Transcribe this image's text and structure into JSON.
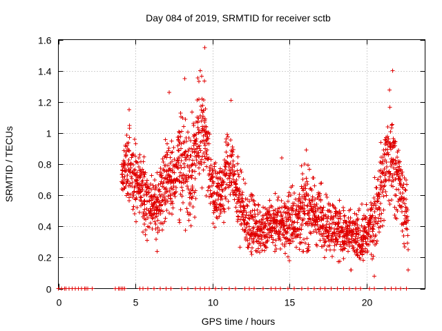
{
  "chart_data": {
    "type": "scatter",
    "title": "Day 084 of 2019, SRMTID for receiver sctb",
    "xlabel": "GPS time / hours",
    "ylabel": "SRMTID / TECUs",
    "xlim": [
      0,
      23.8
    ],
    "ylim": [
      0,
      1.6
    ],
    "grid": true,
    "marker": "+",
    "marker_color": "#e00000",
    "x_ticks": [
      {
        "value": 0,
        "label": "0"
      },
      {
        "value": 5,
        "label": "5"
      },
      {
        "value": 10,
        "label": "10"
      },
      {
        "value": 15,
        "label": "15"
      },
      {
        "value": 20,
        "label": "20"
      }
    ],
    "y_ticks": [
      {
        "value": 0,
        "label": "0"
      },
      {
        "value": 0.2,
        "label": "0.2"
      },
      {
        "value": 0.4,
        "label": "0.4"
      },
      {
        "value": 0.6,
        "label": "0.6"
      },
      {
        "value": 0.8,
        "label": "0.8"
      },
      {
        "value": 1.0,
        "label": "1"
      },
      {
        "value": 1.2,
        "label": "1.2"
      },
      {
        "value": 1.4,
        "label": "1.4"
      },
      {
        "value": 1.6,
        "label": "1.6"
      }
    ],
    "series": [
      {
        "name": "SRMTID",
        "description": "Approximate envelope of a dense scatter of individual + markers; columns give the data range at each time.",
        "profile": [
          {
            "t": 4.1,
            "lo": 0.45,
            "hi": 0.95
          },
          {
            "t": 4.5,
            "lo": 0.45,
            "hi": 1.18
          },
          {
            "t": 5.0,
            "lo": 0.38,
            "hi": 1.0
          },
          {
            "t": 5.5,
            "lo": 0.3,
            "hi": 0.92
          },
          {
            "t": 6.0,
            "lo": 0.28,
            "hi": 0.78
          },
          {
            "t": 6.5,
            "lo": 0.24,
            "hi": 0.82
          },
          {
            "t": 7.0,
            "lo": 0.4,
            "hi": 1.1
          },
          {
            "t": 7.5,
            "lo": 0.4,
            "hi": 1.0
          },
          {
            "t": 8.0,
            "lo": 0.35,
            "hi": 1.3
          },
          {
            "t": 8.5,
            "lo": 0.3,
            "hi": 1.2
          },
          {
            "t": 9.0,
            "lo": 0.4,
            "hi": 1.42
          },
          {
            "t": 9.4,
            "lo": 0.45,
            "hi": 1.55
          },
          {
            "t": 10.0,
            "lo": 0.35,
            "hi": 0.95
          },
          {
            "t": 10.5,
            "lo": 0.35,
            "hi": 0.85
          },
          {
            "t": 11.0,
            "lo": 0.4,
            "hi": 1.2
          },
          {
            "t": 11.5,
            "lo": 0.35,
            "hi": 0.95
          },
          {
            "t": 12.0,
            "lo": 0.15,
            "hi": 0.75
          },
          {
            "t": 13.0,
            "lo": 0.15,
            "hi": 0.6
          },
          {
            "t": 14.0,
            "lo": 0.15,
            "hi": 0.65
          },
          {
            "t": 15.0,
            "lo": 0.15,
            "hi": 0.7
          },
          {
            "t": 16.0,
            "lo": 0.15,
            "hi": 0.9
          },
          {
            "t": 17.0,
            "lo": 0.15,
            "hi": 0.75
          },
          {
            "t": 18.0,
            "lo": 0.12,
            "hi": 0.65
          },
          {
            "t": 19.0,
            "lo": 0.1,
            "hi": 0.55
          },
          {
            "t": 20.0,
            "lo": 0.08,
            "hi": 0.6
          },
          {
            "t": 20.5,
            "lo": 0.15,
            "hi": 0.75
          },
          {
            "t": 21.0,
            "lo": 0.25,
            "hi": 1.1
          },
          {
            "t": 21.5,
            "lo": 0.4,
            "hi": 1.38
          },
          {
            "t": 22.0,
            "lo": 0.4,
            "hi": 1.1
          },
          {
            "t": 22.5,
            "lo": 0.15,
            "hi": 0.8
          },
          {
            "t": 22.7,
            "lo": 0.12,
            "hi": 0.7
          }
        ],
        "sample_points": [
          {
            "x": 4.3,
            "y": 0.72
          },
          {
            "x": 4.6,
            "y": 1.15
          },
          {
            "x": 5.0,
            "y": 0.85
          },
          {
            "x": 6.4,
            "y": 0.24
          },
          {
            "x": 7.2,
            "y": 1.26
          },
          {
            "x": 8.2,
            "y": 1.35
          },
          {
            "x": 9.2,
            "y": 1.4
          },
          {
            "x": 9.5,
            "y": 1.55
          },
          {
            "x": 11.2,
            "y": 1.21
          },
          {
            "x": 14.5,
            "y": 0.84
          },
          {
            "x": 16.1,
            "y": 0.89
          },
          {
            "x": 19.0,
            "y": 0.12
          },
          {
            "x": 20.5,
            "y": 0.08
          },
          {
            "x": 21.7,
            "y": 1.4
          },
          {
            "x": 22.7,
            "y": 0.12
          }
        ],
        "zero_value_times": [
          0.0,
          0.2,
          0.4,
          0.5,
          0.7,
          0.9,
          1.1,
          1.3,
          1.5,
          1.7,
          1.8,
          1.9,
          2.2,
          3.7,
          3.9,
          4.0,
          4.1,
          4.2,
          4.3,
          5.3,
          5.5,
          5.8,
          6.2,
          6.6,
          7.0,
          7.3,
          8.0,
          8.4,
          8.9,
          9.2,
          9.5,
          9.8,
          10.2,
          10.6,
          11.1,
          11.5,
          12.1,
          12.4,
          12.7,
          13.3,
          13.8,
          14.1,
          14.4,
          14.9,
          15.3,
          15.8,
          16.2,
          16.6,
          17.0,
          17.3,
          17.7,
          18.1,
          18.5,
          18.9,
          19.3,
          19.6,
          20.2,
          20.5,
          21.2,
          21.6,
          21.9,
          22.2,
          22.6
        ]
      }
    ]
  }
}
